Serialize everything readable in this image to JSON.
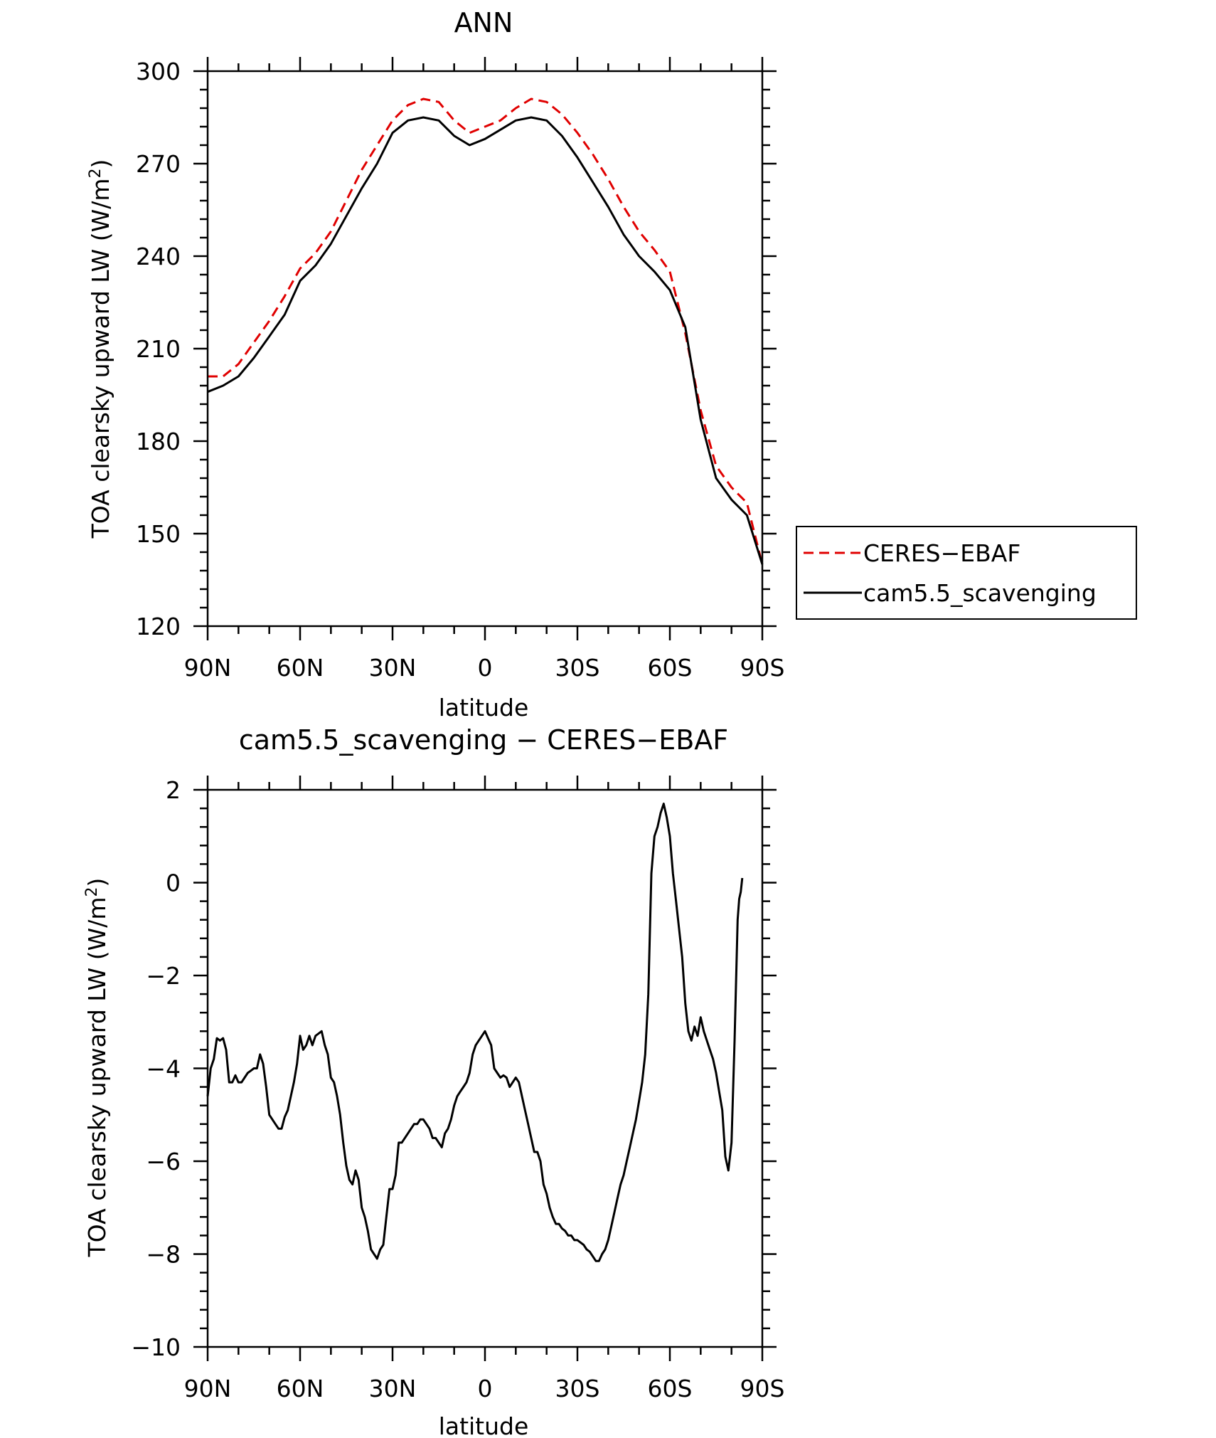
{
  "chart_data": [
    {
      "type": "line",
      "title": "ANN",
      "xlabel": "latitude",
      "ylabel": "TOA clearsky upward LW (W/m²)",
      "ylabel_parts": [
        "TOA clearsky upward LW (W/m",
        "2",
        ")"
      ],
      "xlim": [
        90,
        -90
      ],
      "ylim": [
        120,
        300
      ],
      "x_ticks": [
        90,
        60,
        30,
        0,
        -30,
        -60,
        -90
      ],
      "x_tick_labels": [
        "90N",
        "60N",
        "30N",
        "0",
        "30S",
        "60S",
        "90S"
      ],
      "y_ticks": [
        120,
        150,
        180,
        210,
        240,
        270,
        300
      ],
      "y_tick_labels": [
        "120",
        "150",
        "180",
        "210",
        "240",
        "270",
        "300"
      ],
      "grid": false,
      "legend_position": "right",
      "series": [
        {
          "name": "CERES−EBAF",
          "color": "#e00000",
          "dash": "dashed",
          "points": [
            [
              90,
              201
            ],
            [
              85,
              201
            ],
            [
              80,
              205
            ],
            [
              75,
              212
            ],
            [
              70,
              219
            ],
            [
              65,
              227
            ],
            [
              60,
              236
            ],
            [
              55,
              241
            ],
            [
              50,
              248
            ],
            [
              45,
              258
            ],
            [
              40,
              268
            ],
            [
              35,
              276
            ],
            [
              30,
              284
            ],
            [
              25,
              289
            ],
            [
              20,
              291
            ],
            [
              15,
              290
            ],
            [
              10,
              284
            ],
            [
              5,
              280
            ],
            [
              0,
              282
            ],
            [
              -5,
              284
            ],
            [
              -10,
              288
            ],
            [
              -15,
              291
            ],
            [
              -20,
              290
            ],
            [
              -25,
              286
            ],
            [
              -30,
              280
            ],
            [
              -35,
              273
            ],
            [
              -40,
              265
            ],
            [
              -45,
              256
            ],
            [
              -50,
              248
            ],
            [
              -55,
              242
            ],
            [
              -60,
              235
            ],
            [
              -65,
              215
            ],
            [
              -70,
              190
            ],
            [
              -75,
              172
            ],
            [
              -80,
              165
            ],
            [
              -85,
              160
            ],
            [
              -90,
              140
            ]
          ]
        },
        {
          "name": "cam5.5_scavenging",
          "color": "#000000",
          "dash": "solid",
          "points": [
            [
              90,
              196
            ],
            [
              85,
              198
            ],
            [
              80,
              201
            ],
            [
              75,
              207
            ],
            [
              70,
              214
            ],
            [
              65,
              221
            ],
            [
              60,
              232
            ],
            [
              55,
              237
            ],
            [
              50,
              244
            ],
            [
              45,
              253
            ],
            [
              40,
              262
            ],
            [
              35,
              270
            ],
            [
              30,
              280
            ],
            [
              25,
              284
            ],
            [
              20,
              285
            ],
            [
              15,
              284
            ],
            [
              10,
              279
            ],
            [
              5,
              276
            ],
            [
              0,
              278
            ],
            [
              -5,
              281
            ],
            [
              -10,
              284
            ],
            [
              -15,
              285
            ],
            [
              -20,
              284
            ],
            [
              -25,
              279
            ],
            [
              -30,
              272
            ],
            [
              -35,
              264
            ],
            [
              -40,
              256
            ],
            [
              -45,
              247
            ],
            [
              -50,
              240
            ],
            [
              -55,
              235
            ],
            [
              -60,
              229
            ],
            [
              -65,
              217
            ],
            [
              -70,
              187
            ],
            [
              -75,
              168
            ],
            [
              -80,
              161
            ],
            [
              -85,
              156
            ],
            [
              -90,
              140
            ]
          ]
        }
      ]
    },
    {
      "type": "line",
      "title": "cam5.5_scavenging − CERES−EBAF",
      "xlabel": "latitude",
      "ylabel": "TOA clearsky upward LW (W/m²)",
      "ylabel_parts": [
        "TOA clearsky upward LW (W/m",
        "2",
        ")"
      ],
      "xlim": [
        90,
        -90
      ],
      "ylim": [
        -10,
        2
      ],
      "x_ticks": [
        90,
        60,
        30,
        0,
        -30,
        -60,
        -90
      ],
      "x_tick_labels": [
        "90N",
        "60N",
        "30N",
        "0",
        "30S",
        "60S",
        "90S"
      ],
      "y_ticks": [
        -10,
        -8,
        -6,
        -4,
        -2,
        0,
        2
      ],
      "y_tick_labels": [
        "−10",
        "−8",
        "−6",
        "−4",
        "−2",
        "0",
        "2"
      ],
      "grid": false,
      "series": [
        {
          "color": "#000000",
          "dash": "solid",
          "points": [
            [
              90,
              -4.6
            ],
            [
              89,
              -4.0
            ],
            [
              88,
              -3.8
            ],
            [
              87,
              -3.35
            ],
            [
              86,
              -3.4
            ],
            [
              85,
              -3.35
            ],
            [
              84,
              -3.6
            ],
            [
              83,
              -4.3
            ],
            [
              82,
              -4.3
            ],
            [
              81,
              -4.15
            ],
            [
              80,
              -4.3
            ],
            [
              79,
              -4.3
            ],
            [
              78,
              -4.2
            ],
            [
              77,
              -4.1
            ],
            [
              76,
              -4.05
            ],
            [
              75,
              -4.0
            ],
            [
              74,
              -4.0
            ],
            [
              73,
              -3.7
            ],
            [
              72,
              -3.9
            ],
            [
              71,
              -4.4
            ],
            [
              70,
              -5.0
            ],
            [
              69,
              -5.1
            ],
            [
              68,
              -5.2
            ],
            [
              67,
              -5.3
            ],
            [
              66,
              -5.3
            ],
            [
              65,
              -5.05
            ],
            [
              64,
              -4.9
            ],
            [
              63,
              -4.6
            ],
            [
              62,
              -4.3
            ],
            [
              61,
              -3.9
            ],
            [
              60,
              -3.3
            ],
            [
              59,
              -3.6
            ],
            [
              58,
              -3.5
            ],
            [
              57,
              -3.3
            ],
            [
              56,
              -3.5
            ],
            [
              55,
              -3.3
            ],
            [
              54,
              -3.25
            ],
            [
              53,
              -3.2
            ],
            [
              52,
              -3.5
            ],
            [
              51,
              -3.7
            ],
            [
              50,
              -4.2
            ],
            [
              49,
              -4.3
            ],
            [
              48,
              -4.6
            ],
            [
              47,
              -5.0
            ],
            [
              46,
              -5.6
            ],
            [
              45,
              -6.1
            ],
            [
              44,
              -6.4
            ],
            [
              43,
              -6.5
            ],
            [
              42,
              -6.2
            ],
            [
              41,
              -6.4
            ],
            [
              40,
              -7.0
            ],
            [
              39,
              -7.2
            ],
            [
              38,
              -7.5
            ],
            [
              37,
              -7.9
            ],
            [
              36,
              -8.0
            ],
            [
              35,
              -8.1
            ],
            [
              34,
              -7.9
            ],
            [
              33,
              -7.8
            ],
            [
              32,
              -7.2
            ],
            [
              31,
              -6.6
            ],
            [
              30,
              -6.6
            ],
            [
              29,
              -6.3
            ],
            [
              28,
              -5.6
            ],
            [
              27,
              -5.6
            ],
            [
              26,
              -5.5
            ],
            [
              25,
              -5.4
            ],
            [
              24,
              -5.3
            ],
            [
              23,
              -5.2
            ],
            [
              22,
              -5.2
            ],
            [
              21,
              -5.1
            ],
            [
              20,
              -5.1
            ],
            [
              19,
              -5.2
            ],
            [
              18,
              -5.3
            ],
            [
              17,
              -5.5
            ],
            [
              16,
              -5.5
            ],
            [
              15,
              -5.6
            ],
            [
              14,
              -5.7
            ],
            [
              13,
              -5.4
            ],
            [
              12,
              -5.3
            ],
            [
              11,
              -5.1
            ],
            [
              10,
              -4.8
            ],
            [
              9,
              -4.6
            ],
            [
              8,
              -4.5
            ],
            [
              7,
              -4.4
            ],
            [
              6,
              -4.3
            ],
            [
              5,
              -4.1
            ],
            [
              4,
              -3.7
            ],
            [
              3,
              -3.5
            ],
            [
              2,
              -3.4
            ],
            [
              1,
              -3.3
            ],
            [
              0,
              -3.2
            ],
            [
              -1,
              -3.35
            ],
            [
              -2,
              -3.5
            ],
            [
              -3,
              -4.0
            ],
            [
              -4,
              -4.1
            ],
            [
              -5,
              -4.2
            ],
            [
              -6,
              -4.15
            ],
            [
              -7,
              -4.2
            ],
            [
              -8,
              -4.4
            ],
            [
              -9,
              -4.3
            ],
            [
              -10,
              -4.2
            ],
            [
              -11,
              -4.3
            ],
            [
              -12,
              -4.6
            ],
            [
              -13,
              -4.9
            ],
            [
              -14,
              -5.2
            ],
            [
              -15,
              -5.5
            ],
            [
              -16,
              -5.8
            ],
            [
              -17,
              -5.8
            ],
            [
              -18,
              -6.0
            ],
            [
              -19,
              -6.5
            ],
            [
              -20,
              -6.7
            ],
            [
              -21,
              -7.0
            ],
            [
              -22,
              -7.2
            ],
            [
              -23,
              -7.35
            ],
            [
              -24,
              -7.35
            ],
            [
              -25,
              -7.45
            ],
            [
              -26,
              -7.5
            ],
            [
              -27,
              -7.6
            ],
            [
              -28,
              -7.6
            ],
            [
              -29,
              -7.7
            ],
            [
              -30,
              -7.7
            ],
            [
              -31,
              -7.75
            ],
            [
              -32,
              -7.8
            ],
            [
              -33,
              -7.9
            ],
            [
              -34,
              -7.95
            ],
            [
              -35,
              -8.05
            ],
            [
              -36,
              -8.15
            ],
            [
              -37,
              -8.15
            ],
            [
              -38,
              -8.0
            ],
            [
              -39,
              -7.9
            ],
            [
              -40,
              -7.7
            ],
            [
              -41,
              -7.4
            ],
            [
              -42,
              -7.1
            ],
            [
              -43,
              -6.8
            ],
            [
              -44,
              -6.5
            ],
            [
              -45,
              -6.3
            ],
            [
              -46,
              -6.0
            ],
            [
              -47,
              -5.7
            ],
            [
              -48,
              -5.4
            ],
            [
              -49,
              -5.1
            ],
            [
              -50,
              -4.7
            ],
            [
              -51,
              -4.3
            ],
            [
              -52,
              -3.7
            ],
            [
              -53,
              -2.4
            ],
            [
              -54,
              0.2
            ],
            [
              -55,
              1.0
            ],
            [
              -56,
              1.2
            ],
            [
              -57,
              1.5
            ],
            [
              -58,
              1.7
            ],
            [
              -59,
              1.4
            ],
            [
              -60,
              1.0
            ],
            [
              -61,
              0.2
            ],
            [
              -62,
              -0.4
            ],
            [
              -63,
              -1.0
            ],
            [
              -64,
              -1.6
            ],
            [
              -65,
              -2.6
            ],
            [
              -66,
              -3.2
            ],
            [
              -67,
              -3.4
            ],
            [
              -68,
              -3.1
            ],
            [
              -69,
              -3.3
            ],
            [
              -70,
              -2.9
            ],
            [
              -71,
              -3.2
            ],
            [
              -72,
              -3.4
            ],
            [
              -73,
              -3.6
            ],
            [
              -74,
              -3.8
            ],
            [
              -75,
              -4.1
            ],
            [
              -76,
              -4.5
            ],
            [
              -77,
              -4.9
            ],
            [
              -78,
              -5.9
            ],
            [
              -79,
              -6.2
            ],
            [
              -80,
              -5.6
            ],
            [
              -81,
              -3.4
            ],
            [
              -82,
              -0.8
            ],
            [
              -82.5,
              -0.35
            ],
            [
              -83,
              -0.2
            ],
            [
              -83.5,
              0.1
            ]
          ]
        }
      ]
    }
  ]
}
